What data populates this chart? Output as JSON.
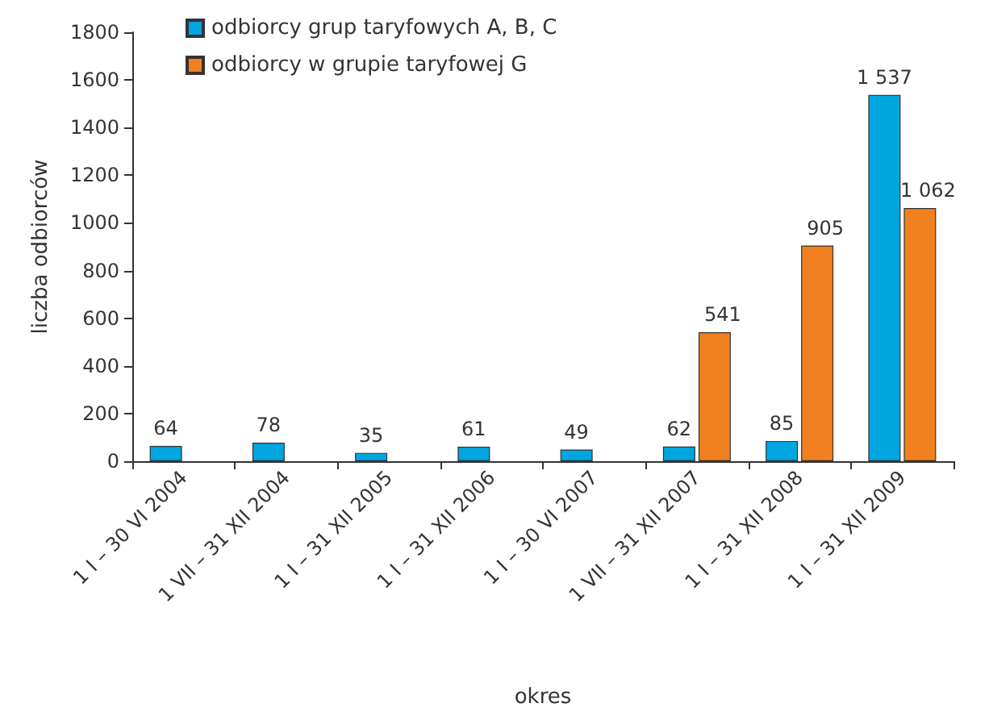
{
  "chart_data": {
    "type": "bar",
    "xlabel": "okres",
    "ylabel": "liczba odbiorców",
    "categories": [
      "1 I – 30 VI 2004",
      "1 VII – 31 XII 2004",
      "1 I – 31 XII 2005",
      "1 I – 31 XII 2006",
      "1 I – 30 VI 2007",
      "1 VII – 31 XII 2007",
      "1 I – 31 XII 2008",
      "1 I – 31 XII 2009"
    ],
    "series": [
      {
        "name": "odbiorcy grup taryfowych A, B, C",
        "color": "#00a6e0",
        "values": [
          64,
          78,
          35,
          61,
          49,
          62,
          85,
          1537
        ],
        "value_labels": [
          "64",
          "78",
          "35",
          "61",
          "49",
          "62",
          "85",
          "1 537"
        ]
      },
      {
        "name": "odbiorcy w grupie taryfowej G",
        "color": "#f08020",
        "values": [
          null,
          null,
          null,
          null,
          null,
          541,
          905,
          1062
        ],
        "value_labels": [
          null,
          null,
          null,
          null,
          null,
          "541",
          "905",
          "1 062"
        ]
      }
    ],
    "ylim": [
      0,
      1800
    ],
    "yticks": [
      0,
      200,
      400,
      600,
      800,
      1000,
      1200,
      1400,
      1600,
      1800
    ],
    "grid": false,
    "legend": "top left"
  }
}
